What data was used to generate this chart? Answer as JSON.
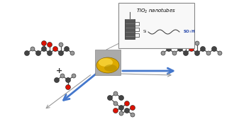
{
  "background_color": "#ffffff",
  "arrow_color": "#4477cc",
  "gray_arrow_color": "#999999",
  "red_color": "#dd1100",
  "dark_gray": "#444444",
  "gray_atom": "#999999",
  "light_gray": "#bbbbbb",
  "gold_color": "#cc9900",
  "blue_text": "#2244aa",
  "figsize": [
    3.37,
    1.89
  ],
  "dpi": 100,
  "box_text": "TiO$_2$ nanotubes",
  "sulfo_text": "SO₃H",
  "si_text": "Si"
}
